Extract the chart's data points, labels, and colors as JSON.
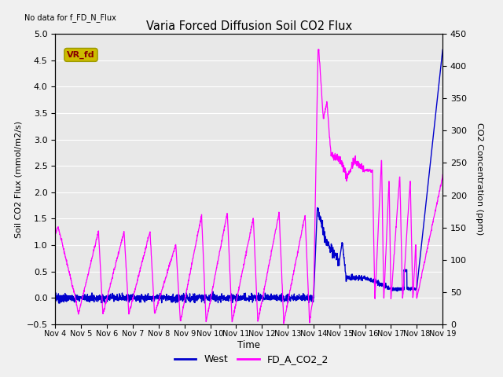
{
  "title": "Varia Forced Diffusion Soil CO2 Flux",
  "top_left_text": "No data for f_FD_N_Flux",
  "annotation_box_text": "VR_fd",
  "annotation_box_facecolor": "#ccbb00",
  "annotation_text_color": "#880000",
  "xlabel": "Time",
  "ylabel_left": "Soil CO2 Flux (mmol/m2/s)",
  "ylabel_right": "CO2 Concentration (ppm)",
  "ylim_left": [
    -0.5,
    5.0
  ],
  "ylim_right": [
    0,
    450
  ],
  "x_tick_labels": [
    "Nov 4",
    "Nov 5",
    "Nov 6",
    "Nov 7",
    "Nov 8",
    "Nov 9",
    "Nov 10",
    "Nov 11",
    "Nov 12",
    "Nov 13",
    "Nov 14",
    "Nov 15",
    "Nov 16",
    "Nov 17",
    "Nov 18",
    "Nov 19"
  ],
  "line_west_color": "#0000cc",
  "line_co2_color": "#ff00ff",
  "legend_entries": [
    "West",
    "FD_A_CO2_2"
  ],
  "plot_bg_color": "#e8e8e8",
  "fig_bg_color": "#f0f0f0",
  "grid_color": "#ffffff",
  "yticks_left": [
    -0.5,
    0.0,
    0.5,
    1.0,
    1.5,
    2.0,
    2.5,
    3.0,
    3.5,
    4.0,
    4.5,
    5.0
  ],
  "yticks_right": [
    0,
    50,
    100,
    150,
    200,
    250,
    300,
    350,
    400,
    450
  ]
}
